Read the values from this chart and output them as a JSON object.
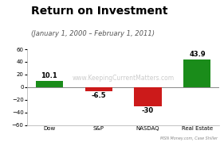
{
  "title": "Return on Investment",
  "subtitle": "(January 1, 2000 – February 1, 2011)",
  "categories": [
    "Dow",
    "S&P",
    "NASDAQ",
    "Real Estate"
  ],
  "values": [
    10.1,
    -6.5,
    -30,
    43.9
  ],
  "bar_colors": [
    "#1a8c1a",
    "#cc1a1a",
    "#cc1a1a",
    "#1a8c1a"
  ],
  "ylim": [
    -60,
    60
  ],
  "yticks": [
    -60,
    -40,
    -20,
    0,
    20,
    40,
    60
  ],
  "watermark": "www.KeepingCurrentMatters.com",
  "source": "MSN Money.com, Case Shiller",
  "background_color": "#ffffff",
  "title_fontsize": 10,
  "subtitle_fontsize": 6,
  "tick_fontsize": 5,
  "value_fontsize": 6,
  "source_fontsize": 3.5
}
